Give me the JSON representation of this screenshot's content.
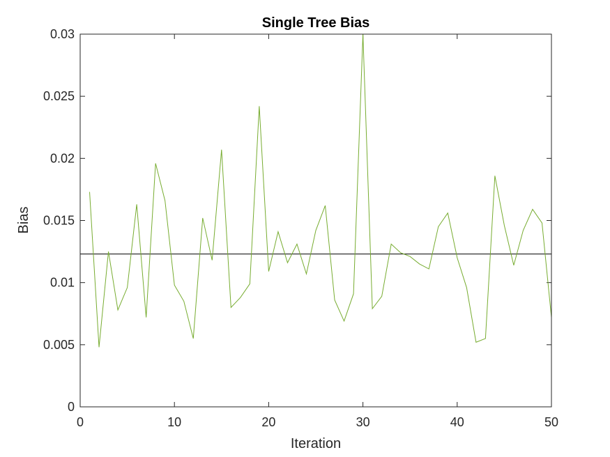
{
  "chart_data": {
    "type": "line",
    "title": "Single Tree Bias",
    "xlabel": "Iteration",
    "ylabel": "Bias",
    "xlim": [
      0,
      50
    ],
    "ylim": [
      0,
      0.03
    ],
    "xticks": [
      "0",
      "10",
      "20",
      "30",
      "40",
      "50"
    ],
    "yticks": [
      "0",
      "0.005",
      "0.01",
      "0.015",
      "0.02",
      "0.025",
      "0.03"
    ],
    "grid": false,
    "colors": {
      "series": "#77AC30",
      "reference": "#000000",
      "axes": "#262626"
    },
    "series": [
      {
        "x": [
          1,
          2,
          3,
          4,
          5,
          6,
          7,
          8,
          9,
          10,
          11,
          12,
          13,
          14,
          15,
          16,
          17,
          18,
          19,
          20,
          21,
          22,
          23,
          24,
          25,
          26,
          27,
          28,
          29,
          30,
          31,
          32,
          33,
          34,
          35,
          36,
          37,
          38,
          39,
          40,
          41,
          42,
          43,
          44,
          45,
          46,
          47,
          48,
          49,
          50
        ],
        "values": [
          0.0173,
          0.0048,
          0.0125,
          0.0078,
          0.0096,
          0.0163,
          0.0072,
          0.0196,
          0.0166,
          0.0098,
          0.0085,
          0.0055,
          0.0152,
          0.0118,
          0.0207,
          0.008,
          0.0088,
          0.0099,
          0.0242,
          0.0109,
          0.0141,
          0.0116,
          0.0131,
          0.0107,
          0.0142,
          0.0162,
          0.0086,
          0.0069,
          0.0091,
          0.03,
          0.0079,
          0.0089,
          0.0131,
          0.0124,
          0.0121,
          0.0115,
          0.0111,
          0.0145,
          0.0156,
          0.012,
          0.0096,
          0.0052,
          0.0055,
          0.0186,
          0.0146,
          0.0114,
          0.0142,
          0.0159,
          0.0148,
          0.0072
        ]
      }
    ],
    "reference_line": {
      "y": 0.0123
    }
  }
}
